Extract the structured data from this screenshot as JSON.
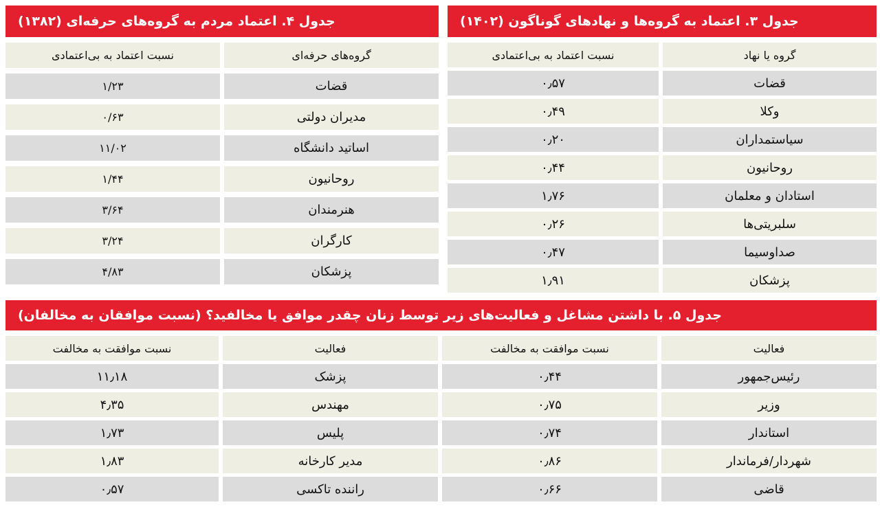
{
  "table3": {
    "title": "جدول ۳. اعتماد به گروه‌ها و نهادهای گوناگون (۱۴۰۲)",
    "headers": [
      "گروه یا نهاد",
      "نسبت اعتماد به بی‌اعتمادی"
    ],
    "rows": [
      [
        "قضات",
        "۰٫۵۷"
      ],
      [
        "وکلا",
        "۰٫۴۹"
      ],
      [
        "سیاستمداران",
        "۰٫۲۰"
      ],
      [
        "روحانیون",
        "۰٫۴۴"
      ],
      [
        "استادان و معلمان",
        "۱٫۷۶"
      ],
      [
        "سلبریتی‌ها",
        "۰٫۲۶"
      ],
      [
        "صداوسیما",
        "۰٫۴۷"
      ],
      [
        "پزشکان",
        "۱٫۹۱"
      ]
    ]
  },
  "table4": {
    "title": "جدول ۴. اعتماد مردم به گروه‌های حرفه‌ای (۱۳۸۲)",
    "headers": [
      "گروه‌های حرفه‌ای",
      "نسبت اعتماد به بی‌اعتمادی"
    ],
    "rows": [
      [
        "قضات",
        "۱/۲۳"
      ],
      [
        "مدیران دولتی",
        "۰/۶۳"
      ],
      [
        "اساتید دانشگاه",
        "۱۱/۰۲"
      ],
      [
        "روحانیون",
        "۱/۴۴"
      ],
      [
        "هنرمندان",
        "۳/۶۴"
      ],
      [
        "کارگران",
        "۳/۲۴"
      ],
      [
        "پزشکان",
        "۴/۸۳"
      ]
    ]
  },
  "table5": {
    "title": "جدول ۵. با داشتن مشاغل و فعالیت‌های زیر توسط زنان چقدر موافق یا مخالفید؟ (نسبت موافقان به مخالفان)",
    "headers": [
      "فعالیت",
      "نسبت موافقت به مخالفت",
      "فعالیت",
      "نسبت موافقت به مخالفت"
    ],
    "rows": [
      [
        "رئیس‌جمهور",
        "۰٫۴۴",
        "پزشک",
        "۱۱٫۱۸"
      ],
      [
        "وزیر",
        "۰٫۷۵",
        "مهندس",
        "۴٫۳۵"
      ],
      [
        "استاندار",
        "۰٫۷۴",
        "پلیس",
        "۱٫۷۳"
      ],
      [
        "شهردار/فرماندار",
        "۰٫۸۶",
        "مدیر کارخانه",
        "۱٫۸۳"
      ],
      [
        "قاضی",
        "۰٫۶۶",
        "راننده تاکسی",
        "۰٫۵۷"
      ]
    ]
  }
}
